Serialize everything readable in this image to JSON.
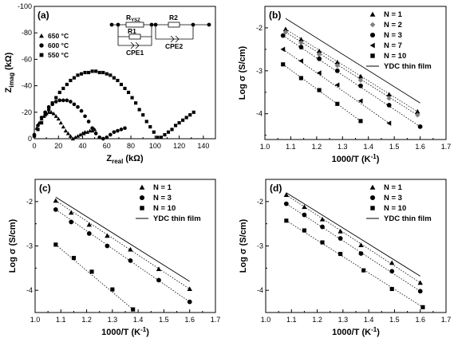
{
  "chart_data": [
    {
      "panel": "(a)",
      "type": "scatter",
      "xlabel": "Z",
      "xlabel_sub": "real",
      "xlabel_unit": " (kΩ)",
      "ylabel": "Z",
      "ylabel_sub": "imag",
      "ylabel_unit": " (kΩ)",
      "xlim": [
        0,
        150
      ],
      "ylim": [
        0,
        -100
      ],
      "xticks": [
        0,
        20,
        40,
        60,
        80,
        100,
        120,
        140
      ],
      "yticks": [
        0,
        -20,
        -40,
        -60,
        -80,
        -100
      ],
      "circuit": {
        "r_ysz_main": "R",
        "r_ysz_sub": "YSZ",
        "r1": "R1",
        "cpe1": "CPE1",
        "r2": "R2",
        "cpe2": "CPE2"
      },
      "series": [
        {
          "name": "650 °C",
          "marker": "triangle",
          "x": [
            0,
            2,
            4,
            6,
            8,
            10,
            12,
            14,
            16,
            18,
            20,
            22,
            24,
            26,
            28,
            30,
            32,
            34,
            36,
            38,
            40,
            41,
            42,
            44,
            46,
            48,
            50
          ],
          "y": [
            -3,
            -8,
            -12,
            -15,
            -17,
            -19,
            -20,
            -20,
            -19,
            -17,
            -15,
            -12,
            -9,
            -6,
            -4,
            -2,
            0,
            -1,
            -2,
            -3,
            -4,
            -4,
            -5,
            -5,
            -6,
            -6,
            -7
          ]
        },
        {
          "name": "600 °C",
          "marker": "circle",
          "x": [
            0,
            3,
            6,
            9,
            12,
            15,
            18,
            21,
            24,
            27,
            30,
            33,
            36,
            39,
            42,
            45,
            48,
            51,
            54,
            57,
            60,
            63,
            66,
            69,
            72,
            75
          ],
          "y": [
            -3,
            -10,
            -16,
            -20,
            -24,
            -26,
            -28,
            -29,
            -29,
            -29,
            -28,
            -26,
            -24,
            -21,
            -17,
            -13,
            -8,
            -4,
            -1,
            0,
            -1,
            -3,
            -5,
            -6,
            -7,
            -8
          ]
        },
        {
          "name": "550 °C",
          "marker": "square",
          "x": [
            0,
            3,
            6,
            9,
            12,
            15,
            18,
            21,
            24,
            27,
            30,
            33,
            36,
            39,
            42,
            45,
            48,
            51,
            54,
            57,
            60,
            63,
            66,
            69,
            72,
            75,
            78,
            81,
            84,
            87,
            90,
            93,
            96,
            99,
            102,
            105,
            108,
            111,
            114,
            117,
            120,
            123,
            126,
            129,
            132
          ],
          "y": [
            -2,
            -7,
            -12,
            -18,
            -22,
            -27,
            -31,
            -35,
            -38,
            -41,
            -44,
            -46,
            -48,
            -49,
            -50,
            -50,
            -51,
            -51,
            -50,
            -50,
            -49,
            -48,
            -46,
            -44,
            -41,
            -38,
            -35,
            -31,
            -27,
            -22,
            -18,
            -13,
            -9,
            -5,
            -1,
            -1,
            -3,
            -5,
            -7,
            -10,
            -12,
            -14,
            -16,
            -18,
            -20
          ]
        }
      ]
    },
    {
      "panel": "(b)",
      "type": "scatter",
      "xlabel": "1000/T (K",
      "xlabel_sup": "-1",
      "xlabel_end": ")",
      "ylabel": "Log σ (S/cm)",
      "xlim": [
        1.0,
        1.7
      ],
      "ylim": [
        -4.6,
        -1.5
      ],
      "xticks": [
        "1.0",
        "1.1",
        "1.2",
        "1.3",
        "1.4",
        "1.5",
        "1.6",
        "1.7"
      ],
      "yticks": [
        "-2",
        "-3",
        "-4"
      ],
      "series": [
        {
          "name": "N = 1",
          "marker": "triangle",
          "color": "#000000",
          "x": [
            1.08,
            1.14,
            1.21,
            1.28,
            1.37,
            1.48,
            1.59
          ],
          "y": [
            -2.03,
            -2.27,
            -2.54,
            -2.8,
            -3.13,
            -3.55,
            -3.95
          ]
        },
        {
          "name": "N = 2",
          "marker": "diamond",
          "color": "#808080",
          "x": [
            1.08,
            1.14,
            1.21,
            1.28,
            1.37,
            1.48,
            1.59
          ],
          "y": [
            -2.1,
            -2.35,
            -2.62,
            -2.88,
            -3.22,
            -3.64,
            -4.03
          ]
        },
        {
          "name": "N = 3",
          "marker": "circle",
          "color": "#000000",
          "x": [
            1.07,
            1.14,
            1.21,
            1.28,
            1.37,
            1.48,
            1.6
          ],
          "y": [
            -2.18,
            -2.45,
            -2.72,
            -3.0,
            -3.35,
            -3.8,
            -4.3
          ]
        },
        {
          "name": "N = 7",
          "marker": "triangle-left",
          "color": "#000000",
          "x": [
            1.07,
            1.14,
            1.21,
            1.28,
            1.37,
            1.48
          ],
          "y": [
            -2.5,
            -2.77,
            -3.05,
            -3.33,
            -3.7,
            -4.22
          ]
        },
        {
          "name": "N = 10",
          "marker": "square",
          "color": "#000000",
          "x": [
            1.07,
            1.14,
            1.21,
            1.28,
            1.37
          ],
          "y": [
            -2.85,
            -3.17,
            -3.45,
            -3.77,
            -4.17
          ]
        },
        {
          "name": "YDC thin film",
          "marker": "line",
          "color": "#000000",
          "x": [
            1.08,
            1.6
          ],
          "y": [
            -1.78,
            -3.75
          ]
        }
      ]
    },
    {
      "panel": "(c)",
      "type": "scatter",
      "xlabel": "1000/T (K",
      "xlabel_sup": "-1",
      "xlabel_end": ")",
      "ylabel": "Log σ (S/cm)",
      "xlim": [
        1.0,
        1.7
      ],
      "ylim": [
        -4.5,
        -1.5
      ],
      "xticks": [
        "1.0",
        "1.1",
        "1.2",
        "1.3",
        "1.4",
        "1.5",
        "1.6",
        "1.7"
      ],
      "yticks": [
        "-2",
        "-3",
        "-4"
      ],
      "series": [
        {
          "name": "N = 1",
          "marker": "triangle",
          "color": "#000000",
          "x": [
            1.08,
            1.14,
            1.21,
            1.28,
            1.37,
            1.48,
            1.6
          ],
          "y": [
            -1.98,
            -2.25,
            -2.52,
            -2.77,
            -3.08,
            -3.52,
            -3.97
          ]
        },
        {
          "name": "N = 3",
          "marker": "circle",
          "color": "#000000",
          "x": [
            1.08,
            1.14,
            1.21,
            1.28,
            1.37,
            1.48,
            1.6
          ],
          "y": [
            -2.18,
            -2.46,
            -2.72,
            -3.0,
            -3.33,
            -3.77,
            -4.26
          ]
        },
        {
          "name": "N = 10",
          "marker": "square",
          "color": "#000000",
          "x": [
            1.08,
            1.15,
            1.22,
            1.3,
            1.38
          ],
          "y": [
            -2.97,
            -3.27,
            -3.58,
            -3.98,
            -4.43
          ]
        },
        {
          "name": "YDC thin film",
          "marker": "line",
          "color": "#000000",
          "x": [
            1.08,
            1.6
          ],
          "y": [
            -1.9,
            -3.8
          ]
        }
      ]
    },
    {
      "panel": "(d)",
      "type": "scatter",
      "xlabel": "1000/T (K",
      "xlabel_sup": "-1",
      "xlabel_end": ")",
      "ylabel": "Log σ (S/cm)",
      "xlim": [
        1.0,
        1.7
      ],
      "ylim": [
        -4.5,
        -1.5
      ],
      "xticks": [
        "1.0",
        "1.1",
        "1.2",
        "1.3",
        "1.4",
        "1.5",
        "1.6",
        "1.7"
      ],
      "yticks": [
        "-2",
        "-3",
        "-4"
      ],
      "series": [
        {
          "name": "N = 1",
          "marker": "triangle",
          "color": "#000000",
          "x": [
            1.08,
            1.15,
            1.22,
            1.29,
            1.37,
            1.49,
            1.6
          ],
          "y": [
            -1.85,
            -2.12,
            -2.4,
            -2.67,
            -2.98,
            -3.38,
            -3.83
          ]
        },
        {
          "name": "N = 3",
          "marker": "circle",
          "color": "#000000",
          "x": [
            1.08,
            1.15,
            1.22,
            1.29,
            1.37,
            1.49,
            1.6
          ],
          "y": [
            -2.05,
            -2.3,
            -2.57,
            -2.83,
            -3.17,
            -3.57,
            -4.02
          ]
        },
        {
          "name": "N = 10",
          "marker": "square",
          "color": "#000000",
          "x": [
            1.08,
            1.15,
            1.22,
            1.29,
            1.38,
            1.49,
            1.61
          ],
          "y": [
            -2.43,
            -2.65,
            -2.92,
            -3.18,
            -3.55,
            -3.97,
            -4.38
          ]
        },
        {
          "name": "YDC thin film",
          "marker": "line",
          "color": "#000000",
          "x": [
            1.08,
            1.6
          ],
          "y": [
            -1.8,
            -3.68
          ]
        }
      ]
    }
  ]
}
